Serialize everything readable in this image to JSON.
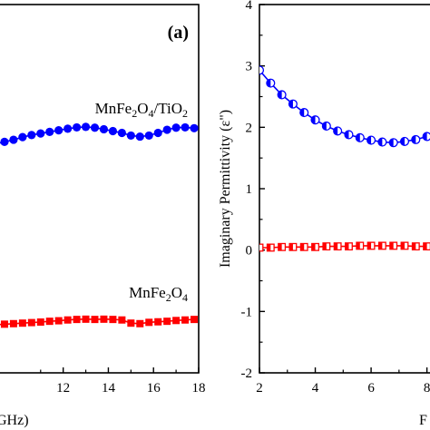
{
  "chart_data": [
    {
      "type": "line",
      "panel_tag": "(a)",
      "xlabel": "GHz)",
      "ylabel": "",
      "xlim": [
        9,
        18
      ],
      "ylim": [
        -6,
        8
      ],
      "xticks": [
        "12",
        "14",
        "16",
        "18"
      ],
      "grid": false,
      "series": [
        {
          "name_parts": [
            "MnFe",
            "2",
            "O",
            "4",
            "/TiO",
            "2"
          ],
          "color": "#0000ff",
          "marker": "circle",
          "x": [
            9.0,
            9.4,
            9.8,
            10.2,
            10.6,
            11.0,
            11.4,
            11.8,
            12.2,
            12.6,
            13.0,
            13.4,
            13.8,
            14.2,
            14.6,
            15.0,
            15.4,
            15.8,
            16.2,
            16.6,
            17.0,
            17.4,
            17.8
          ],
          "y": [
            2.7,
            2.78,
            2.86,
            2.96,
            3.04,
            3.1,
            3.16,
            3.22,
            3.28,
            3.33,
            3.35,
            3.32,
            3.26,
            3.19,
            3.12,
            3.02,
            2.98,
            3.02,
            3.12,
            3.24,
            3.32,
            3.33,
            3.3
          ]
        },
        {
          "name_parts": [
            "MnFe",
            "2",
            "O",
            "4"
          ],
          "color": "#ff0000",
          "marker": "square",
          "x": [
            9.0,
            9.4,
            9.8,
            10.2,
            10.6,
            11.0,
            11.4,
            11.8,
            12.2,
            12.6,
            13.0,
            13.4,
            13.8,
            14.2,
            14.6,
            15.0,
            15.4,
            15.8,
            16.2,
            16.6,
            17.0,
            17.4,
            17.8
          ],
          "y": [
            -4.17,
            -4.15,
            -4.13,
            -4.11,
            -4.09,
            -4.07,
            -4.04,
            -4.02,
            -3.99,
            -3.97,
            -3.96,
            -3.97,
            -3.96,
            -3.97,
            -3.99,
            -4.11,
            -4.13,
            -4.08,
            -4.06,
            -4.04,
            -4.01,
            -3.99,
            -3.97
          ]
        }
      ]
    },
    {
      "type": "line",
      "panel_tag": "",
      "xlabel": "F",
      "ylabel": "Imaginary Permittivity (ε\")",
      "xlim": [
        2,
        8.5
      ],
      "ylim": [
        -2,
        4
      ],
      "xticks": [
        "2",
        "4",
        "6",
        "8"
      ],
      "yticks": [
        "-2",
        "-1",
        "0",
        "1",
        "2",
        "3",
        "4"
      ],
      "grid": false,
      "series": [
        {
          "color": "#0000ff",
          "marker": "half-circle",
          "x": [
            2.0,
            2.4,
            2.8,
            3.2,
            3.6,
            4.0,
            4.4,
            4.8,
            5.2,
            5.6,
            6.0,
            6.4,
            6.8,
            7.2,
            7.6,
            8.0,
            8.4
          ],
          "y": [
            2.93,
            2.72,
            2.53,
            2.38,
            2.24,
            2.12,
            2.02,
            1.94,
            1.88,
            1.83,
            1.79,
            1.76,
            1.75,
            1.77,
            1.8,
            1.85,
            1.9
          ]
        },
        {
          "color": "#ff0000",
          "marker": "half-square",
          "x": [
            2.0,
            2.4,
            2.8,
            3.2,
            3.6,
            4.0,
            4.4,
            4.8,
            5.2,
            5.6,
            6.0,
            6.4,
            6.8,
            7.2,
            7.6,
            8.0,
            8.4
          ],
          "y": [
            0.04,
            0.04,
            0.05,
            0.05,
            0.05,
            0.05,
            0.06,
            0.06,
            0.06,
            0.07,
            0.07,
            0.07,
            0.07,
            0.07,
            0.06,
            0.06,
            0.06
          ]
        }
      ]
    }
  ]
}
